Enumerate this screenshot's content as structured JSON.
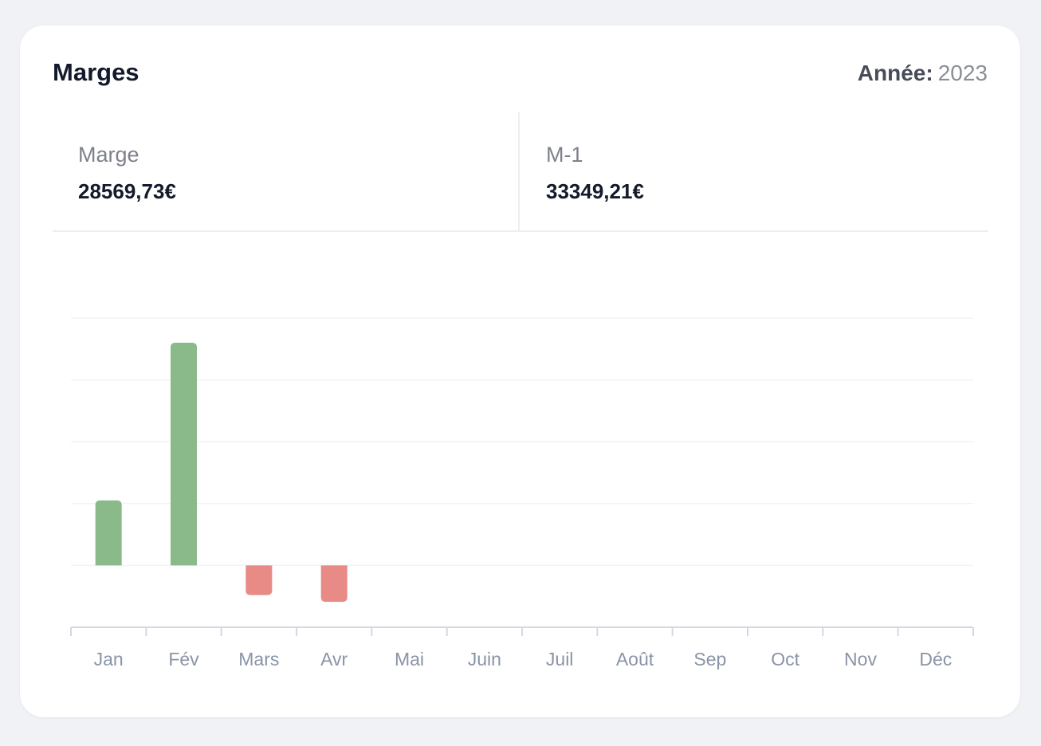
{
  "card": {
    "title": "Marges",
    "year_label": "Année:",
    "year_value": "2023"
  },
  "stats": [
    {
      "label": "Marge",
      "value": "28569,73€"
    },
    {
      "label": "M-1",
      "value": "33349,21€"
    }
  ],
  "colors": {
    "positive": "#8aba8a",
    "negative": "#e88a86",
    "axis": "#d4d8e0",
    "grid": "#f2f3f6",
    "tick_text": "#8a94a6"
  },
  "chart_data": {
    "type": "bar",
    "categories": [
      "Jan",
      "Fév",
      "Mars",
      "Avr",
      "Mai",
      "Juin",
      "Juil",
      "Août",
      "Sep",
      "Oct",
      "Nov",
      "Déc"
    ],
    "values": [
      10500,
      36000,
      -4800,
      -5900,
      0,
      0,
      0,
      0,
      0,
      0,
      0,
      0
    ],
    "ylim": [
      -10000,
      40000
    ],
    "yticks": [
      -10000,
      0,
      10000,
      20000,
      30000,
      40000
    ],
    "grid": true,
    "ylabels_shown": false
  }
}
